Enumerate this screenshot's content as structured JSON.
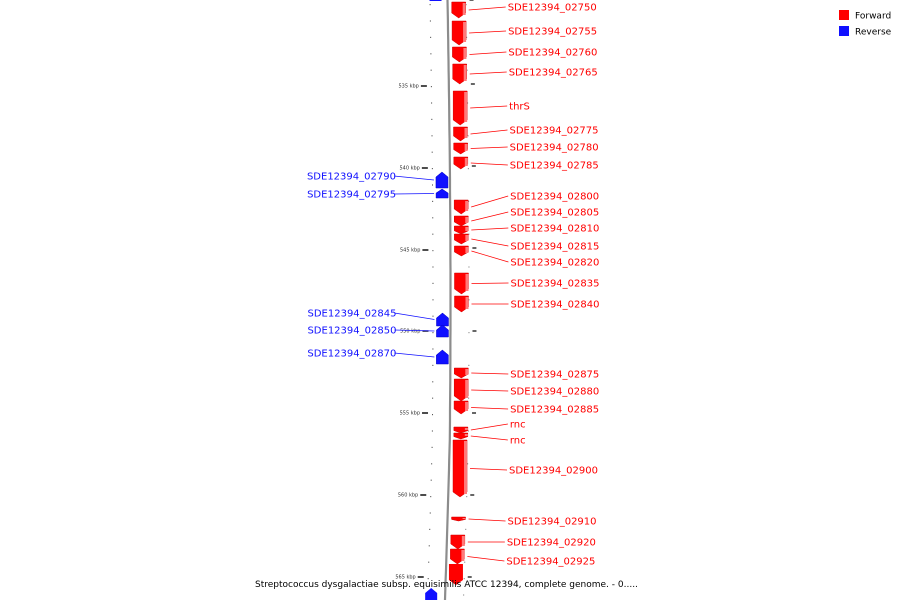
{
  "colors": {
    "forward": "#ff0000",
    "reverse": "#1010ff",
    "backbone": "#8c8c8c",
    "tick": "#000000"
  },
  "legend": {
    "items": [
      {
        "label": "Forward",
        "color": "#ff0000"
      },
      {
        "label": "Reverse",
        "color": "#1010ff"
      }
    ]
  },
  "axis": {
    "unit": "kbp",
    "major_ticks": [
      {
        "label": "535 kbp"
      },
      {
        "label": "540 kbp"
      },
      {
        "label": "545 kbp"
      },
      {
        "label": "550 kbp"
      },
      {
        "label": "555 kbp"
      },
      {
        "label": "560 kbp"
      },
      {
        "label": "565 kbp"
      }
    ]
  },
  "genes": [
    {
      "name": "SDE12394_02750",
      "strand": "forward"
    },
    {
      "name": "SDE12394_02755",
      "strand": "forward"
    },
    {
      "name": "SDE12394_02760",
      "strand": "forward"
    },
    {
      "name": "SDE12394_02765",
      "strand": "forward"
    },
    {
      "name": "thrS",
      "strand": "forward"
    },
    {
      "name": "SDE12394_02775",
      "strand": "forward"
    },
    {
      "name": "SDE12394_02780",
      "strand": "forward"
    },
    {
      "name": "SDE12394_02785",
      "strand": "forward"
    },
    {
      "name": "SDE12394_02790",
      "strand": "reverse"
    },
    {
      "name": "SDE12394_02795",
      "strand": "reverse"
    },
    {
      "name": "SDE12394_02800",
      "strand": "forward"
    },
    {
      "name": "SDE12394_02805",
      "strand": "forward"
    },
    {
      "name": "SDE12394_02810",
      "strand": "forward"
    },
    {
      "name": "SDE12394_02815",
      "strand": "forward"
    },
    {
      "name": "SDE12394_02820",
      "strand": "forward"
    },
    {
      "name": "SDE12394_02835",
      "strand": "forward"
    },
    {
      "name": "SDE12394_02840",
      "strand": "forward"
    },
    {
      "name": "SDE12394_02845",
      "strand": "reverse"
    },
    {
      "name": "SDE12394_02850",
      "strand": "reverse"
    },
    {
      "name": "SDE12394_02870",
      "strand": "reverse"
    },
    {
      "name": "SDE12394_02875",
      "strand": "forward"
    },
    {
      "name": "SDE12394_02880",
      "strand": "forward"
    },
    {
      "name": "SDE12394_02885",
      "strand": "forward"
    },
    {
      "name": "rnc",
      "strand": "forward"
    },
    {
      "name": "rnc",
      "strand": "forward"
    },
    {
      "name": "SDE12394_02900",
      "strand": "forward"
    },
    {
      "name": "SDE12394_02910",
      "strand": "forward"
    },
    {
      "name": "SDE12394_02920",
      "strand": "forward"
    },
    {
      "name": "SDE12394_02925",
      "strand": "forward"
    }
  ],
  "footer": "Streptococcus dysgalactiae subsp. equisimilis ATCC 12394, complete genome. - 0....."
}
